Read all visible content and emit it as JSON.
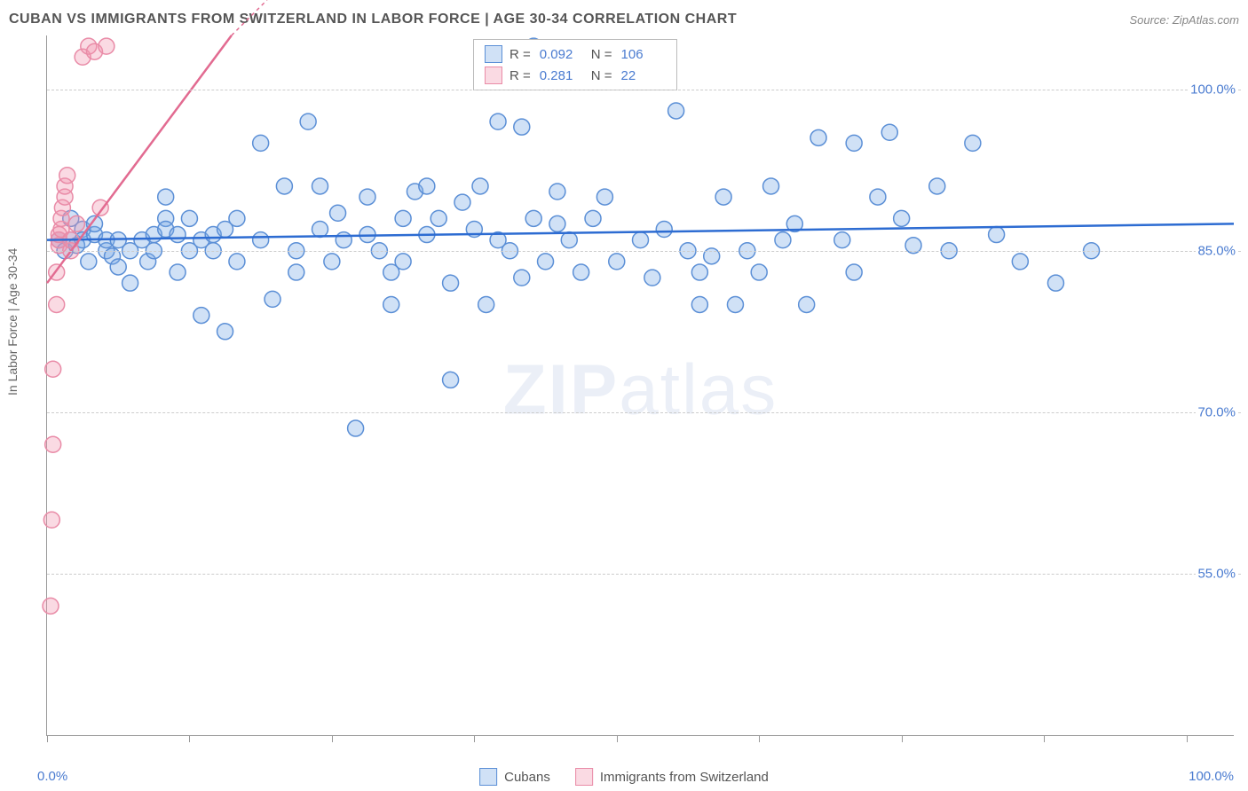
{
  "title": "CUBAN VS IMMIGRANTS FROM SWITZERLAND IN LABOR FORCE | AGE 30-34 CORRELATION CHART",
  "source": "Source: ZipAtlas.com",
  "watermark": "ZIPatlas",
  "yaxis_title": "In Labor Force | Age 30-34",
  "chart": {
    "type": "scatter",
    "background_color": "#ffffff",
    "grid_color": "#cccccc",
    "axis_color": "#999999",
    "text_color": "#555555",
    "value_color": "#4a7bd0",
    "xlim": [
      0,
      100
    ],
    "ylim": [
      40,
      105
    ],
    "xtick_positions": [
      0,
      12,
      24,
      36,
      48,
      60,
      72,
      84,
      96
    ],
    "ytick_positions": [
      55,
      70,
      85,
      100
    ],
    "ytick_labels": [
      "55.0%",
      "70.0%",
      "85.0%",
      "100.0%"
    ],
    "x_label_min": "0.0%",
    "x_label_max": "100.0%",
    "marker_radius": 9,
    "marker_stroke_width": 1.5,
    "trend_line_width": 2.5
  },
  "series": [
    {
      "name": "Cubans",
      "fill": "rgba(120,170,230,0.35)",
      "stroke": "#5b8fd6",
      "trend_color": "#2d6cd2",
      "R": "0.092",
      "N": "106",
      "trend": {
        "y_at_x0": 86.0,
        "y_at_x100": 87.5
      },
      "points": [
        [
          1,
          86
        ],
        [
          1.5,
          85
        ],
        [
          2,
          86
        ],
        [
          2,
          88
        ],
        [
          2.5,
          85.5
        ],
        [
          3,
          87
        ],
        [
          3,
          86
        ],
        [
          3.5,
          84
        ],
        [
          4,
          86.5
        ],
        [
          4,
          87.5
        ],
        [
          5,
          85
        ],
        [
          5,
          86
        ],
        [
          5.5,
          84.5
        ],
        [
          6,
          86
        ],
        [
          6,
          83.5
        ],
        [
          7,
          85
        ],
        [
          7,
          82
        ],
        [
          8,
          86
        ],
        [
          8.5,
          84
        ],
        [
          9,
          86.5
        ],
        [
          9,
          85
        ],
        [
          10,
          88
        ],
        [
          10,
          87
        ],
        [
          10,
          90
        ],
        [
          11,
          86.5
        ],
        [
          11,
          83
        ],
        [
          12,
          88
        ],
        [
          12,
          85
        ],
        [
          13,
          86
        ],
        [
          13,
          79
        ],
        [
          14,
          86.5
        ],
        [
          14,
          85
        ],
        [
          15,
          87
        ],
        [
          15,
          77.5
        ],
        [
          16,
          84
        ],
        [
          16,
          88
        ],
        [
          18,
          86
        ],
        [
          18,
          95
        ],
        [
          19,
          80.5
        ],
        [
          20,
          91
        ],
        [
          21,
          85
        ],
        [
          21,
          83
        ],
        [
          22,
          97
        ],
        [
          23,
          91
        ],
        [
          23,
          87
        ],
        [
          24,
          84
        ],
        [
          24.5,
          88.5
        ],
        [
          25,
          86
        ],
        [
          26,
          68.5
        ],
        [
          27,
          90
        ],
        [
          27,
          86.5
        ],
        [
          28,
          85
        ],
        [
          29,
          83
        ],
        [
          29,
          80
        ],
        [
          30,
          88
        ],
        [
          30,
          84
        ],
        [
          31,
          90.5
        ],
        [
          32,
          86.5
        ],
        [
          32,
          91
        ],
        [
          33,
          88
        ],
        [
          34,
          82
        ],
        [
          34,
          73
        ],
        [
          35,
          89.5
        ],
        [
          36,
          87
        ],
        [
          36.5,
          91
        ],
        [
          37,
          80
        ],
        [
          38,
          86
        ],
        [
          38,
          97
        ],
        [
          39,
          85
        ],
        [
          40,
          96.5
        ],
        [
          40,
          82.5
        ],
        [
          41,
          88
        ],
        [
          41,
          104
        ],
        [
          42,
          84
        ],
        [
          43,
          87.5
        ],
        [
          43,
          90.5
        ],
        [
          44,
          86
        ],
        [
          45,
          83
        ],
        [
          46,
          88
        ],
        [
          47,
          90
        ],
        [
          48,
          84
        ],
        [
          50,
          86
        ],
        [
          51,
          82.5
        ],
        [
          52,
          87
        ],
        [
          53,
          98
        ],
        [
          54,
          85
        ],
        [
          55,
          83
        ],
        [
          55,
          80
        ],
        [
          56,
          84.5
        ],
        [
          57,
          90
        ],
        [
          58,
          80
        ],
        [
          59,
          85
        ],
        [
          60,
          83
        ],
        [
          61,
          91
        ],
        [
          62,
          86
        ],
        [
          63,
          87.5
        ],
        [
          64,
          80
        ],
        [
          65,
          95.5
        ],
        [
          67,
          86
        ],
        [
          68,
          83
        ],
        [
          68,
          95
        ],
        [
          70,
          90
        ],
        [
          71,
          96
        ],
        [
          72,
          88
        ],
        [
          73,
          85.5
        ],
        [
          75,
          91
        ],
        [
          76,
          85
        ],
        [
          78,
          95
        ],
        [
          80,
          86.5
        ],
        [
          82,
          84
        ],
        [
          85,
          82
        ],
        [
          88,
          85
        ]
      ]
    },
    {
      "name": "Immigrants from Switzerland",
      "fill": "rgba(240,150,175,0.35)",
      "stroke": "#e98ba7",
      "trend_color": "#e26b91",
      "R": "0.281",
      "N": "22",
      "trend": {
        "y_at_x0": 82.0,
        "y_at_x100": 230.0
      },
      "points": [
        [
          0.3,
          52
        ],
        [
          0.4,
          60
        ],
        [
          0.5,
          67
        ],
        [
          0.5,
          74
        ],
        [
          0.8,
          80
        ],
        [
          0.8,
          83
        ],
        [
          1,
          85.5
        ],
        [
          1,
          86
        ],
        [
          1,
          86.5
        ],
        [
          1.2,
          87
        ],
        [
          1.2,
          88
        ],
        [
          1.3,
          89
        ],
        [
          1.5,
          90
        ],
        [
          1.5,
          91
        ],
        [
          1.7,
          92
        ],
        [
          2,
          85
        ],
        [
          2,
          86
        ],
        [
          2.5,
          87.5
        ],
        [
          3,
          103
        ],
        [
          3.5,
          104
        ],
        [
          4,
          103.5
        ],
        [
          4.5,
          89
        ],
        [
          5,
          104
        ]
      ]
    }
  ],
  "legend": {
    "bottom_items": [
      "Cubans",
      "Immigrants from Switzerland"
    ]
  }
}
